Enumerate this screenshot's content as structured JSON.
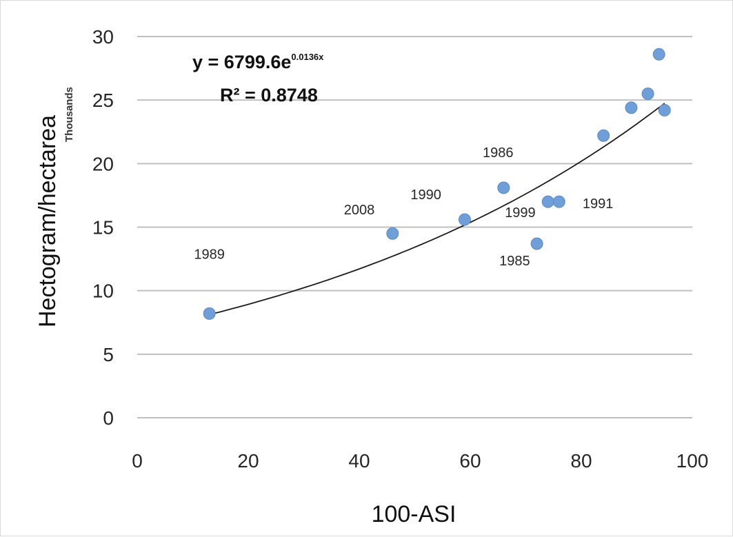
{
  "chart_data": {
    "type": "scatter",
    "title": "",
    "xlabel": "100-ASI",
    "ylabel": "Hectogram/hectarea",
    "y_unit_label": "Thousands",
    "xlim": [
      0,
      100
    ],
    "ylim": [
      0,
      30
    ],
    "x_ticks": [
      0,
      20,
      40,
      60,
      80,
      100
    ],
    "y_ticks": [
      0,
      5,
      10,
      15,
      20,
      25,
      30
    ],
    "grid": "horizontal",
    "legend": "none",
    "points": [
      {
        "x": 13,
        "y": 8.2
      },
      {
        "x": 46,
        "y": 14.5
      },
      {
        "x": 59,
        "y": 15.6
      },
      {
        "x": 66,
        "y": 18.1
      },
      {
        "x": 72,
        "y": 13.7
      },
      {
        "x": 74,
        "y": 17.0
      },
      {
        "x": 76,
        "y": 17.0
      },
      {
        "x": 84,
        "y": 22.2
      },
      {
        "x": 89,
        "y": 24.4
      },
      {
        "x": 92,
        "y": 25.5
      },
      {
        "x": 94,
        "y": 28.6
      },
      {
        "x": 95,
        "y": 24.2
      }
    ],
    "point_labels": [
      {
        "text": "1989",
        "x": 13,
        "y": 12.5
      },
      {
        "text": "2008",
        "x": 40,
        "y": 16.0
      },
      {
        "text": "1990",
        "x": 52,
        "y": 17.2
      },
      {
        "text": "1986",
        "x": 65,
        "y": 20.5
      },
      {
        "text": "1999",
        "x": 69,
        "y": 15.8
      },
      {
        "text": "1985",
        "x": 68,
        "y": 12.0
      },
      {
        "text": "1991",
        "x": 83,
        "y": 16.5
      }
    ],
    "trendline": {
      "type": "exponential",
      "a": 6799.6,
      "b": 0.0136,
      "x_range": [
        13,
        95
      ],
      "unit_scale": 1000,
      "equation_base": "y = 6799.6e",
      "equation_exponent": "0.0136x",
      "r_squared_text": "R² = 0.8748"
    },
    "colors": {
      "point": "#6f9fd8",
      "point_stroke": "#5b8ac6",
      "trendline": "#1a1a1a",
      "grid": "#bfbfbf"
    }
  }
}
